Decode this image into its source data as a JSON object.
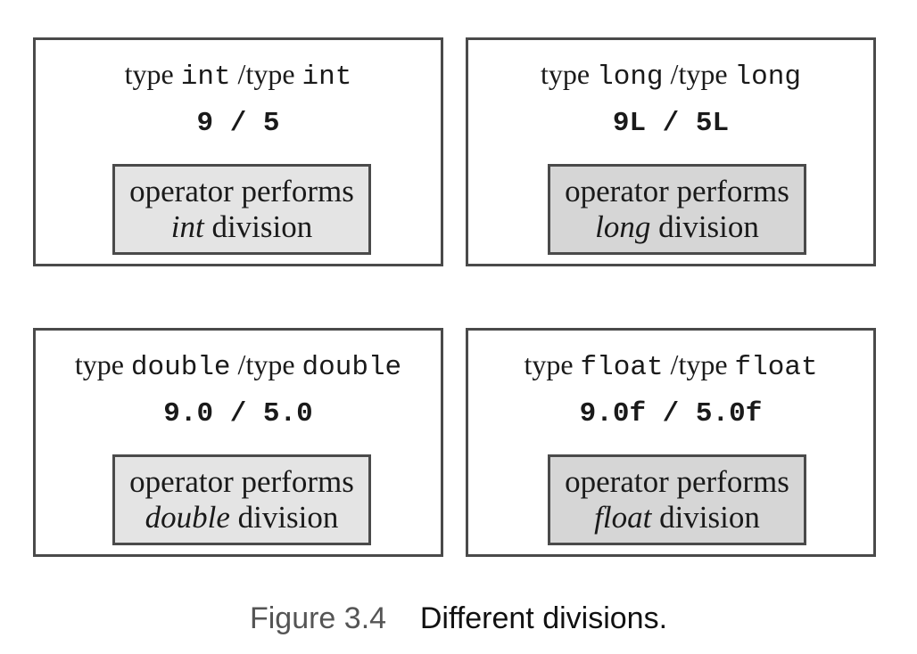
{
  "panels": [
    {
      "type_word_left": "type",
      "type_left": "int",
      "type_word_right": "/type",
      "type_right": "int",
      "expression": "9 / 5",
      "op_line1": "operator performs",
      "op_type": "int",
      "op_line2_suffix": " division"
    },
    {
      "type_word_left": "type",
      "type_left": "long",
      "type_word_right": "/type",
      "type_right": "long",
      "expression": "9L / 5L",
      "op_line1": "operator performs",
      "op_type": "long",
      "op_line2_suffix": " division"
    },
    {
      "type_word_left": "type",
      "type_left": "double",
      "type_word_right": "/type",
      "type_right": "double",
      "expression": "9.0 / 5.0",
      "op_line1": "operator performs",
      "op_type": "double",
      "op_line2_suffix": " division"
    },
    {
      "type_word_left": "type",
      "type_left": "float",
      "type_word_right": "/type",
      "type_right": "float",
      "expression": "9.0f / 5.0f",
      "op_line1": "operator performs",
      "op_type": "float",
      "op_line2_suffix": " division"
    }
  ],
  "caption": {
    "number": "Figure 3.4",
    "text": "Different divisions."
  }
}
